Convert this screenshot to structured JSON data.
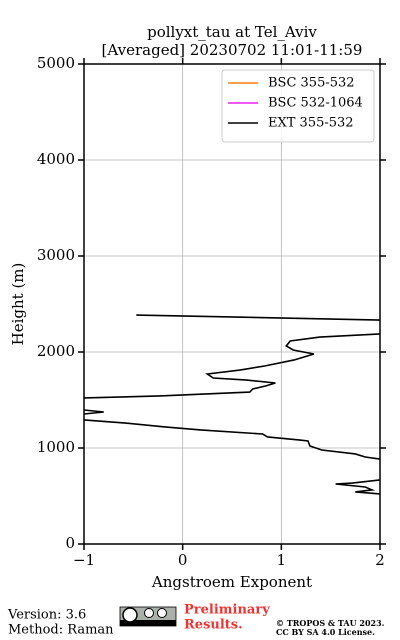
{
  "chart_data": {
    "type": "line",
    "title": "pollyxt_tau at Tel_Aviv",
    "subtitle": "[Averaged] 20230702 11:01-11:59",
    "x_label": "Angstroem Exponent",
    "y_label": "Height (m)",
    "xlim": [
      -1,
      2
    ],
    "ylim": [
      0,
      5000
    ],
    "xticks": [
      {
        "value": -1,
        "label": "−1"
      },
      0,
      1,
      2
    ],
    "yticks": [
      0,
      1000,
      2000,
      3000,
      4000,
      5000
    ],
    "grid": true,
    "legend": "upper right",
    "y": [
      2385,
      2333,
      null,
      2188,
      2156,
      2115,
      2063,
      2021,
      1979,
      1917,
      1854,
      1812,
      1771,
      1729,
      1708,
      1677,
      1646,
      1615,
      1583,
      1542,
      1521,
      null,
      1396,
      1375,
      1354,
      null,
      1292,
      1260,
      1219,
      1188,
      1146,
      1115,
      1083,
      1073,
      1021,
      979,
      938,
      906,
      885,
      null,
      667,
      635,
      625,
      594,
      563,
      542,
      521
    ],
    "series": [
      {
        "name": "BSC 355-532",
        "color": "#ff7f0e",
        "values": [
          null,
          null,
          null,
          null,
          null,
          null,
          null,
          null,
          null,
          null,
          null,
          null,
          null,
          null,
          null,
          null,
          null,
          null,
          null,
          null,
          null,
          null,
          null,
          null,
          null,
          null,
          null,
          null,
          null,
          null,
          null,
          null,
          null,
          null,
          null,
          null,
          null,
          null,
          null,
          null,
          null,
          null,
          null,
          null,
          null,
          null,
          null
        ]
      },
      {
        "name": "BSC 532-1064",
        "color": "#ee22ee",
        "values": [
          null,
          null,
          null,
          null,
          null,
          null,
          null,
          null,
          null,
          null,
          null,
          null,
          null,
          null,
          null,
          null,
          null,
          null,
          null,
          null,
          null,
          null,
          null,
          null,
          null,
          null,
          null,
          null,
          null,
          null,
          null,
          null,
          null,
          null,
          null,
          null,
          null,
          null,
          null,
          null,
          null,
          null,
          null,
          null,
          null,
          null,
          null
        ]
      },
      {
        "name": "EXT 355-532",
        "color": "#000000",
        "values": [
          -0.47,
          2.0,
          null,
          2.0,
          1.39,
          1.09,
          1.05,
          1.12,
          1.33,
          1.13,
          0.83,
          0.58,
          0.25,
          0.31,
          0.65,
          0.94,
          0.84,
          0.71,
          0.68,
          -0.23,
          -1.0,
          null,
          -1.0,
          -0.8,
          -1.0,
          null,
          -1.0,
          -0.58,
          -0.18,
          0.18,
          0.81,
          0.86,
          1.19,
          1.27,
          1.29,
          1.41,
          1.75,
          1.85,
          2.0,
          null,
          2.0,
          1.72,
          1.55,
          1.85,
          1.92,
          1.75,
          2.0
        ]
      }
    ]
  },
  "footer": {
    "version": "Version: 3.6",
    "method": "Method: Raman",
    "preliminary": [
      "Preliminary",
      "Results."
    ],
    "copyright": "© TROPOS & TAU 2023.",
    "license": "CC BY SA 4.0 License."
  }
}
